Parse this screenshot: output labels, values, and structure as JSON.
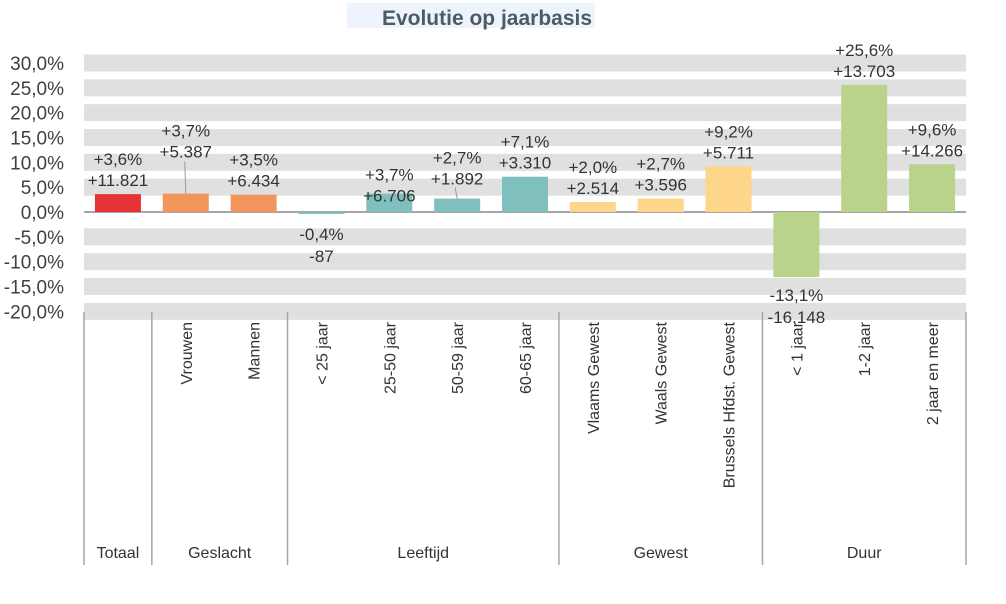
{
  "chart_data": {
    "type": "bar",
    "title": "Evolutie op jaarbasis",
    "ylim": [
      -20,
      30
    ],
    "yticks": [
      "30,0%",
      "25,0%",
      "20,0%",
      "15,0%",
      "10,0%",
      "5,0%",
      "0,0%",
      "-5,0%",
      "-10,0%",
      "-15,0%",
      "-20,0%"
    ],
    "grid": true,
    "categories": [
      "",
      "Vrouwen",
      "Mannen",
      "< 25 jaar",
      "25-50 jaar",
      "50-59 jaar",
      "60-65 jaar",
      "Vlaams Gewest",
      "Waals Gewest",
      "Brussels Hfdst. Gewest",
      "< 1 jaar",
      "1-2 jaar",
      "2 jaar en meer"
    ],
    "values": [
      3.6,
      3.7,
      3.5,
      -0.4,
      3.7,
      2.7,
      7.1,
      2.0,
      2.7,
      9.2,
      -13.1,
      25.6,
      9.6
    ],
    "label_pct": [
      "+3,6%",
      "+3,7%",
      "+3,5%",
      "-0,4%",
      "+3,7%",
      "+2,7%",
      "+7,1%",
      "+2,0%",
      "+2,7%",
      "+9,2%",
      "-13,1%",
      "+25,6%",
      "+9,6%"
    ],
    "label_abs": [
      "+11.821",
      "+5.387",
      "+6.434",
      "-87",
      "+6.706",
      "+1.892",
      "+3.310",
      "+2.514",
      "+3.596",
      "+5.711",
      "-16.148",
      "+13.703",
      "+14.266"
    ],
    "colors": [
      "#e63338",
      "#f0965c",
      "#f0965c",
      "#7fbfbd",
      "#7fbfbd",
      "#7fbfbd",
      "#7fbfbd",
      "#fdd68a",
      "#fdd68a",
      "#fdd68a",
      "#bad38a",
      "#bad38a",
      "#bad38a"
    ],
    "groups": [
      {
        "label": "Totaal",
        "span": 1
      },
      {
        "label": "Geslacht",
        "span": 2
      },
      {
        "label": "Leeftijd",
        "span": 4
      },
      {
        "label": "Gewest",
        "span": 3
      },
      {
        "label": "Duur",
        "span": 3
      }
    ]
  }
}
